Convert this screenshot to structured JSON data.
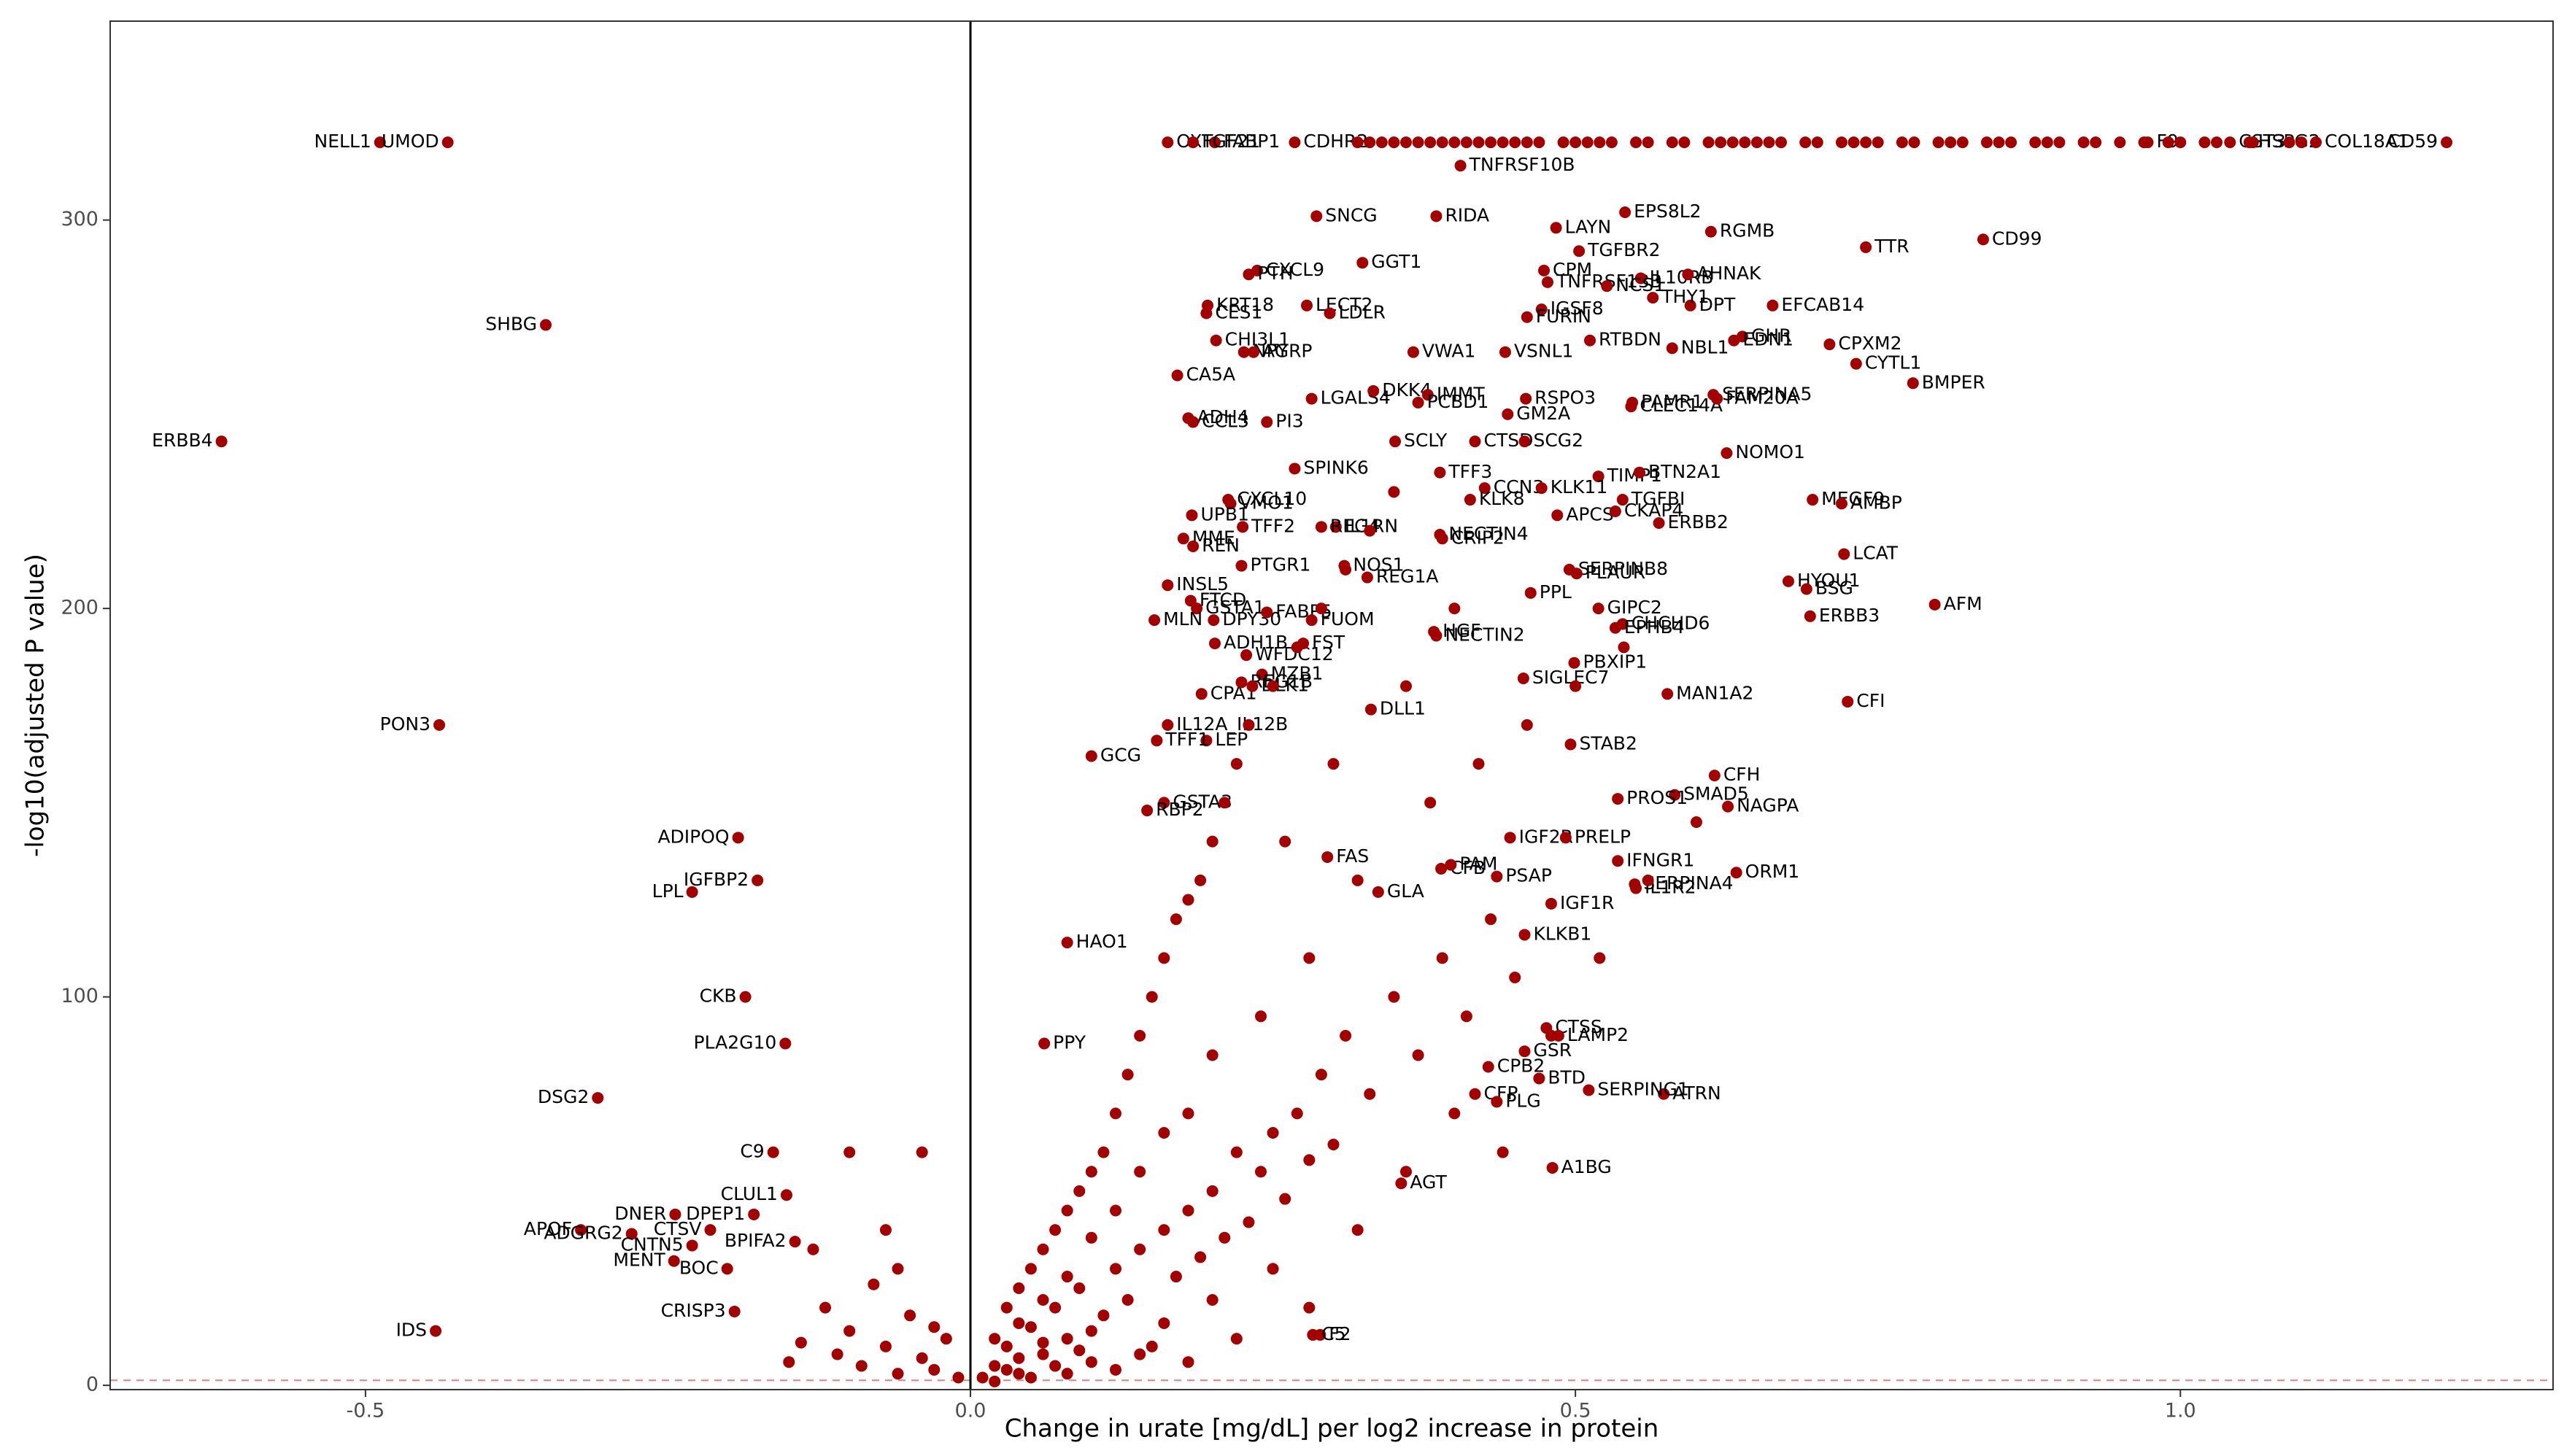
{
  "chart_data": {
    "type": "scatter",
    "xlabel": "Change in urate [mg/dL] per log2 increase in protein",
    "ylabel": "-log10(adjusted P value)",
    "xlim": [
      -0.711,
      1.308
    ],
    "ylim": [
      -1.1,
      351.2
    ],
    "xticks": [
      -0.5,
      {
        "value": 0,
        "label": "0.0"
      },
      0.5,
      {
        "value": 1,
        "label": "1.0"
      }
    ],
    "yticks": [
      0,
      100,
      200,
      300
    ],
    "vline": 0,
    "hline": 1.3,
    "series": [
      {
        "color": "#a30000",
        "labels": [
          "NELL1",
          "UMOD",
          "SHBG",
          "ERBB4",
          "PON3",
          "ADIPOQ",
          "IGFBP2",
          "LPL",
          "CKB",
          "PLA2G10",
          "DSG2",
          "APOF",
          "MENT",
          "BOC",
          "ADGRG2",
          "CNTN5",
          "DNER",
          "CTSV",
          "CLUL1",
          "C9",
          "DPEP1",
          "BPIFA2",
          "CRISP3",
          "IDS",
          "OXT",
          "FABP1",
          "FGF21",
          "CDHR2",
          "F9",
          "CST3",
          "HSPG2",
          "COL18A1",
          "CD59",
          "TNFRSF10B",
          "RIDA",
          "CPM",
          "TNFRSF13B",
          "LAYN",
          "EPS8L2",
          "TGFBR2",
          "RGMB",
          "IL10RB",
          "AHNAK",
          "TTR",
          "CD99",
          "EFCAB14",
          "CPXM2",
          "GHR",
          "DPT",
          "THY1",
          "NCS1",
          "IGSF8",
          "FURIN",
          "RTBDN",
          "NBL1",
          "EDN1",
          "CYTL1",
          "BMPER",
          "SNCG",
          "CXCL9",
          "GGT1",
          "PTH",
          "LECT2",
          "KRT18",
          "CES1",
          "LDLR",
          "CHI3L1",
          "NPY",
          "AGRP",
          "VWA1",
          "VSNL1",
          "CA5A",
          "LGALS4",
          "DKK4",
          "IMMT",
          "RSPO3",
          "PAMR1",
          "ADH4",
          "CCL3",
          "PI3",
          "PCBD1",
          "GM2A",
          "CLEC14A",
          "SERPINA5",
          "FAM20A",
          "SCLY",
          "CTSD",
          "SCG2",
          "TIMP1",
          "NOMO1",
          "SPINK6",
          "TFF3",
          "CCN3",
          "KLK11",
          "BTN2A1",
          "CXCL10",
          "VMO1",
          "UPB1",
          "MEGF9",
          "AMBP",
          "IL1RN",
          "KLK8",
          "APCS",
          "TGFBI",
          "MME",
          "TFF2",
          "REN",
          "REG4",
          "CRIP2",
          "NECTIN4",
          "CKAP4",
          "ERBB2",
          "LCAT",
          "PTGR1",
          "NOS1",
          "REG1A",
          "SERPINB8",
          "PLAUR",
          "HYOU1",
          "INSL5",
          "BSG",
          "AFM",
          "GSTA1",
          "DPY30",
          "PPL",
          "MLN",
          "FTCD",
          "FABP5",
          "FUOM",
          "HGF",
          "NECTIN2",
          "GIPC2",
          "CHCHD6",
          "ERBB3",
          "EPHB4",
          "ADH1B",
          "WFDC12",
          "FST",
          "PBXIP1",
          "MZB1",
          "CPA1",
          "REG1B",
          "DLK1",
          "SIGLEC7",
          "MAN1A2",
          "CFI",
          "DLL1",
          "IL12A_IL12B",
          "LEP",
          "STAB2",
          "GCG",
          "TFF1",
          "SMAD5",
          "CFH",
          "GSTA3",
          "NAGPA",
          "PROS1",
          "RBP2",
          "CFB",
          "IGF2R",
          "PRELP",
          "IFNGR1",
          "FAS",
          "PAM",
          "SERPINA4",
          "ORM1",
          "GLA",
          "PSAP",
          "IGF1R",
          "IL1R2",
          "HAO1",
          "KLKB1",
          "PPY",
          "CTSS",
          "GSR",
          "LAMP2",
          "CPB2",
          "BTD",
          "CFP",
          "ATRN",
          "PLG",
          "SERPING1",
          "AGT",
          "A1BG",
          "F2",
          "C5"
        ],
        "x": [
          -0.488,
          -0.432,
          -0.351,
          -0.619,
          -0.439,
          -0.192,
          -0.176,
          -0.23,
          -0.186,
          -0.153,
          -0.308,
          -0.322,
          -0.245,
          -0.201,
          -0.28,
          -0.23,
          -0.244,
          -0.215,
          -0.152,
          -0.163,
          -0.179,
          -0.145,
          -0.195,
          -0.442,
          0.163,
          0.202,
          0.184,
          0.268,
          0.973,
          1.041,
          1.057,
          1.112,
          1.22,
          0.405,
          0.385,
          0.474,
          0.477,
          0.484,
          0.541,
          0.503,
          0.612,
          0.554,
          0.593,
          0.74,
          0.837,
          0.663,
          0.71,
          0.638,
          0.595,
          0.564,
          0.526,
          0.472,
          0.46,
          0.512,
          0.58,
          0.631,
          0.732,
          0.779,
          0.286,
          0.237,
          0.324,
          0.23,
          0.278,
          0.196,
          0.195,
          0.297,
          0.203,
          0.226,
          0.234,
          0.366,
          0.442,
          0.171,
          0.282,
          0.333,
          0.378,
          0.459,
          0.547,
          0.18,
          0.184,
          0.245,
          0.37,
          0.444,
          0.546,
          0.614,
          0.617,
          0.351,
          0.417,
          0.458,
          0.519,
          0.625,
          0.268,
          0.388,
          0.425,
          0.472,
          0.553,
          0.213,
          0.215,
          0.183,
          0.696,
          0.72,
          0.302,
          0.413,
          0.485,
          0.539,
          0.176,
          0.225,
          0.184,
          0.29,
          0.39,
          0.388,
          0.533,
          0.569,
          0.722,
          0.224,
          0.309,
          0.328,
          0.495,
          0.501,
          0.676,
          0.163,
          0.691,
          0.797,
          0.187,
          0.201,
          0.463,
          0.152,
          0.182,
          0.245,
          0.282,
          0.383,
          0.385,
          0.519,
          0.539,
          0.694,
          0.533,
          0.202,
          0.228,
          0.275,
          0.499,
          0.241,
          0.191,
          0.224,
          0.233,
          0.457,
          0.576,
          0.725,
          0.331,
          0.163,
          0.195,
          0.496,
          0.1,
          0.154,
          0.582,
          0.615,
          0.16,
          0.626,
          0.535,
          0.146,
          0.389,
          0.446,
          0.492,
          0.535,
          0.295,
          0.397,
          0.549,
          0.633,
          0.337,
          0.435,
          0.48,
          0.55,
          0.08,
          0.458,
          0.061,
          0.476,
          0.458,
          0.486,
          0.428,
          0.47,
          0.417,
          0.573,
          0.435,
          0.511,
          0.356,
          0.481,
          0.289,
          0.283
        ],
        "y": [
          320,
          320,
          273,
          243,
          170,
          141,
          130,
          127,
          100,
          88,
          74,
          40,
          32,
          30,
          39,
          36,
          44,
          40,
          49,
          60,
          44,
          37,
          19,
          14,
          320,
          320,
          320,
          320,
          320,
          320,
          320,
          320,
          320,
          314,
          301,
          287,
          284,
          298,
          302,
          292,
          297,
          285,
          286,
          293,
          295,
          278,
          268,
          270,
          278,
          280,
          283,
          277,
          275,
          269,
          267,
          269,
          263,
          258,
          301,
          287,
          289,
          286,
          278,
          278,
          276,
          276,
          269,
          266,
          266,
          266,
          266,
          260,
          254,
          256,
          255,
          254,
          253,
          249,
          248,
          248,
          253,
          250,
          252,
          255,
          254,
          243,
          243,
          243,
          234,
          240,
          236,
          235,
          231,
          231,
          235,
          228,
          227,
          224,
          228,
          227,
          221,
          228,
          224,
          228,
          218,
          221,
          216,
          221,
          218,
          219,
          225,
          222,
          214,
          211,
          211,
          208,
          210,
          209,
          207,
          206,
          205,
          201,
          200,
          197,
          204,
          197,
          202,
          199,
          197,
          194,
          193,
          200,
          196,
          198,
          195,
          191,
          188,
          191,
          186,
          183,
          178,
          181,
          180,
          182,
          178,
          176,
          174,
          170,
          166,
          165,
          162,
          166,
          152,
          157,
          150,
          149,
          151,
          148,
          133,
          141,
          141,
          135,
          136,
          134,
          129,
          132,
          127,
          131,
          124,
          128,
          114,
          116,
          88,
          92,
          86,
          90,
          82,
          79,
          75,
          75,
          73,
          76,
          52,
          56,
          13,
          13
        ]
      },
      {
        "color": "#a30000",
        "x": [
          0.32,
          0.33,
          0.34,
          0.35,
          0.36,
          0.37,
          0.38,
          0.39,
          0.4,
          0.41,
          0.42,
          0.43,
          0.44,
          0.45,
          0.46,
          0.47,
          0.49,
          0.5,
          0.51,
          0.52,
          0.53,
          0.55,
          0.56,
          0.58,
          0.59,
          0.61,
          0.62,
          0.63,
          0.64,
          0.65,
          0.66,
          0.67,
          0.69,
          0.7,
          0.72,
          0.73,
          0.74,
          0.75,
          0.77,
          0.78,
          0.8,
          0.81,
          0.82,
          0.84,
          0.85,
          0.86,
          0.88,
          0.89,
          0.9,
          0.92,
          0.93,
          0.95,
          0.97,
          0.99,
          1.0,
          1.02,
          1.03,
          1.06,
          1.09,
          1.1
        ],
        "y": [
          320,
          320,
          320,
          320,
          320,
          320,
          320,
          320,
          320,
          320,
          320,
          320,
          320,
          320,
          320,
          320,
          320,
          320,
          320,
          320,
          320,
          320,
          320,
          320,
          320,
          320,
          320,
          320,
          320,
          320,
          320,
          320,
          320,
          320,
          320,
          320,
          320,
          320,
          320,
          320,
          320,
          320,
          320,
          320,
          320,
          320,
          320,
          320,
          320,
          320,
          320,
          320,
          320,
          320,
          320,
          320,
          320,
          320,
          320,
          320
        ]
      },
      {
        "color": "#a30000",
        "x": [
          0.02,
          0.03,
          0.04,
          0.05,
          0.06,
          0.07,
          0.08,
          0.09,
          0.1,
          0.11,
          0.12,
          0.13,
          0.14,
          0.15,
          0.16,
          0.17,
          0.18,
          0.19,
          0.2,
          0.21,
          0.22,
          0.23,
          0.24,
          0.25,
          0.26,
          0.27,
          0.28,
          0.29,
          0.3,
          0.31,
          0.33,
          0.35,
          0.37,
          0.39,
          0.41,
          0.43,
          0.45,
          0.02,
          0.03,
          0.04,
          0.05,
          0.06,
          0.07,
          0.08,
          0.09,
          0.1,
          0.11,
          0.12,
          0.13,
          0.14,
          0.15,
          0.16,
          0.17,
          0.18,
          0.19,
          0.2,
          0.21,
          0.22,
          0.23,
          0.25,
          0.27,
          0.29,
          0.31,
          0.33,
          0.35,
          0.01,
          0.02,
          0.03,
          0.04,
          0.05,
          0.06,
          0.07,
          0.08,
          0.09,
          0.1,
          0.12,
          0.14,
          0.16,
          0.18,
          0.2,
          0.22,
          0.25,
          0.28,
          0.32,
          0.36,
          0.4,
          0.44,
          0.48,
          0.52,
          0.56,
          0.6,
          0.38,
          0.42,
          0.46,
          0.5,
          0.54,
          0.4,
          0.36,
          0.3,
          0.26,
          0.32,
          0.28,
          0.24,
          0.2,
          0.18,
          0.16,
          0.14,
          0.12,
          0.1,
          0.08,
          0.06,
          0.04,
          -0.12,
          -0.11,
          -0.1,
          -0.09,
          -0.08,
          -0.07,
          -0.06,
          -0.05,
          -0.04,
          -0.03,
          -0.02,
          -0.01,
          -0.13,
          -0.14,
          -0.15,
          -0.1,
          -0.04,
          -0.07,
          -0.06,
          -0.03
        ],
        "y": [
          5,
          10,
          3,
          15,
          8,
          20,
          12,
          25,
          6,
          18,
          30,
          22,
          35,
          10,
          40,
          28,
          45,
          33,
          50,
          38,
          60,
          42,
          55,
          65,
          48,
          70,
          58,
          80,
          62,
          90,
          75,
          100,
          85,
          110,
          95,
          120,
          105,
          12,
          20,
          25,
          30,
          35,
          40,
          45,
          50,
          55,
          60,
          70,
          80,
          90,
          100,
          110,
          120,
          125,
          130,
          140,
          150,
          160,
          170,
          180,
          190,
          200,
          210,
          220,
          230,
          2,
          1,
          4,
          7,
          2,
          11,
          5,
          3,
          9,
          14,
          4,
          8,
          16,
          6,
          22,
          12,
          30,
          20,
          40,
          55,
          70,
          60,
          90,
          110,
          130,
          145,
          150,
          160,
          170,
          180,
          190,
          200,
          180,
          160,
          140,
          130,
          110,
          95,
          85,
          70,
          65,
          55,
          45,
          38,
          28,
          22,
          16,
          20,
          8,
          14,
          5,
          26,
          10,
          3,
          18,
          7,
          4,
          12,
          2,
          35,
          11,
          6,
          60,
          60,
          40,
          30,
          15
        ]
      }
    ]
  }
}
